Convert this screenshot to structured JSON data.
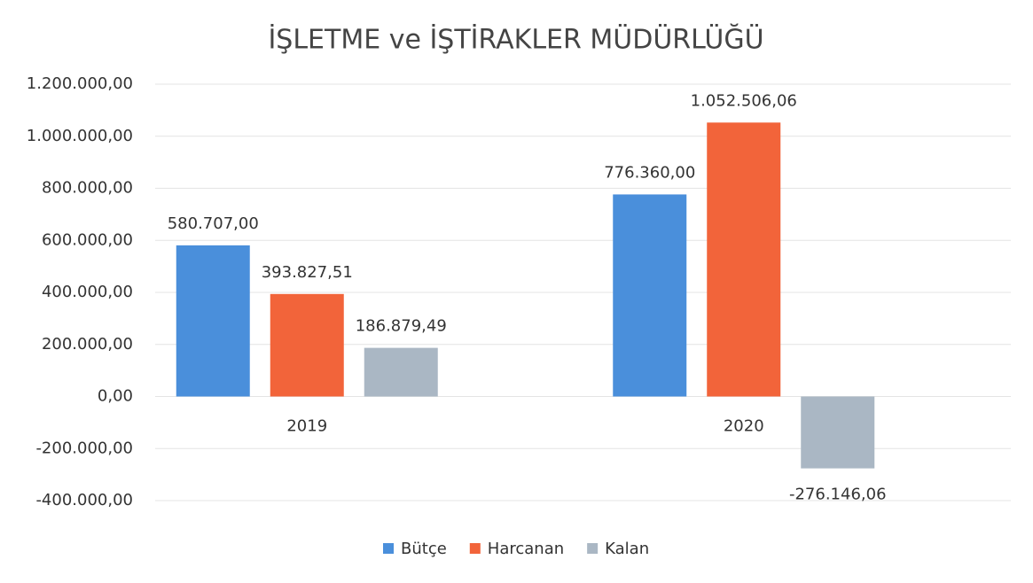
{
  "chart_data": {
    "type": "bar",
    "title": "İŞLETME ve İŞTİRAKLER MÜDÜRLÜĞÜ",
    "categories": [
      "2019",
      "2020"
    ],
    "series": [
      {
        "name": "Bütçe",
        "color": "#4a8fdb",
        "values": [
          580707.0,
          776360.0
        ],
        "value_labels": [
          "580.707,00",
          "776.360,00"
        ]
      },
      {
        "name": "Harcanan",
        "color": "#f2643a",
        "values": [
          393827.51,
          1052506.06
        ],
        "value_labels": [
          "393.827,51",
          "1.052.506,06"
        ]
      },
      {
        "name": "Kalan",
        "color": "#aab7c4",
        "values": [
          186879.49,
          -276146.06
        ],
        "value_labels": [
          "186.879,49",
          "-276.146,06"
        ]
      }
    ],
    "ylim": [
      -400000,
      1200000
    ],
    "yticks": [
      {
        "value": -400000,
        "label": "-400.000,00"
      },
      {
        "value": -200000,
        "label": "-200.000,00"
      },
      {
        "value": 0,
        "label": "0,00"
      },
      {
        "value": 200000,
        "label": "200.000,00"
      },
      {
        "value": 400000,
        "label": "400.000,00"
      },
      {
        "value": 600000,
        "label": "600.000,00"
      },
      {
        "value": 800000,
        "label": "800.000,00"
      },
      {
        "value": 1000000,
        "label": "1.000.000,00"
      },
      {
        "value": 1200000,
        "label": "1.200.000,00"
      }
    ],
    "grid": true,
    "legend": "bottom"
  }
}
